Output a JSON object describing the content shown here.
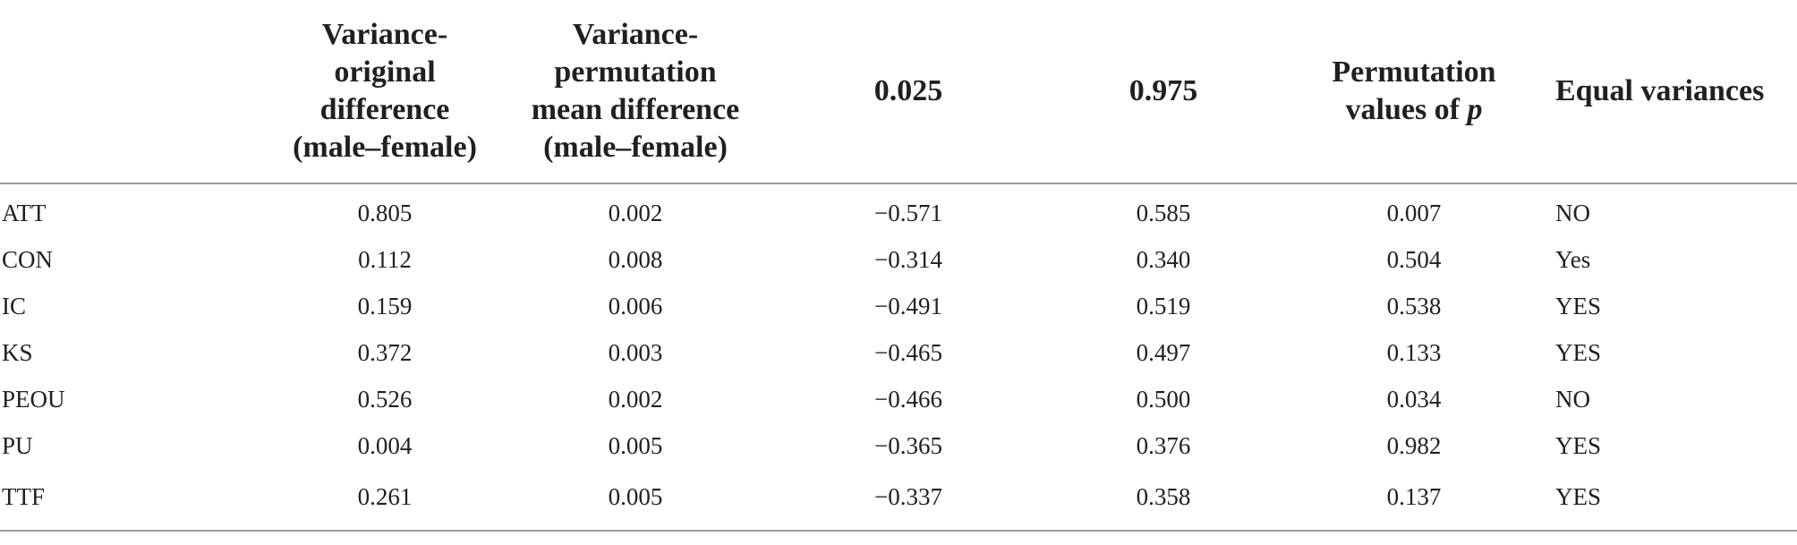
{
  "table": {
    "headers": {
      "stub": "",
      "variance_original": [
        "Variance-",
        "original",
        "difference",
        "(male–female)"
      ],
      "variance_permutation": [
        "Variance-",
        "permutation",
        "mean difference",
        "(male–female)"
      ],
      "q025": "0.025",
      "q975": "0.975",
      "permutation_p": [
        "Permutation",
        "values of",
        "p"
      ],
      "equal_variances": "Equal variances"
    },
    "rows": [
      {
        "construct": "ATT",
        "original_diff": "0.805",
        "permutation_mean_diff": "0.002",
        "q025": "−0.571",
        "q975": "0.585",
        "p": "0.007",
        "equal_variances": "NO"
      },
      {
        "construct": "CON",
        "original_diff": "0.112",
        "permutation_mean_diff": "0.008",
        "q025": "−0.314",
        "q975": "0.340",
        "p": "0.504",
        "equal_variances": "Yes"
      },
      {
        "construct": "IC",
        "original_diff": "0.159",
        "permutation_mean_diff": "0.006",
        "q025": "−0.491",
        "q975": "0.519",
        "p": "0.538",
        "equal_variances": "YES"
      },
      {
        "construct": "KS",
        "original_diff": "0.372",
        "permutation_mean_diff": "0.003",
        "q025": "−0.465",
        "q975": "0.497",
        "p": "0.133",
        "equal_variances": "YES"
      },
      {
        "construct": "PEOU",
        "original_diff": "0.526",
        "permutation_mean_diff": "0.002",
        "q025": "−0.466",
        "q975": "0.500",
        "p": "0.034",
        "equal_variances": "NO"
      },
      {
        "construct": "PU",
        "original_diff": "0.004",
        "permutation_mean_diff": "0.005",
        "q025": "−0.365",
        "q975": "0.376",
        "p": "0.982",
        "equal_variances": "YES"
      },
      {
        "construct": "TTF",
        "original_diff": "0.261",
        "permutation_mean_diff": "0.005",
        "q025": "−0.337",
        "q975": "0.358",
        "p": "0.137",
        "equal_variances": "YES"
      }
    ]
  }
}
